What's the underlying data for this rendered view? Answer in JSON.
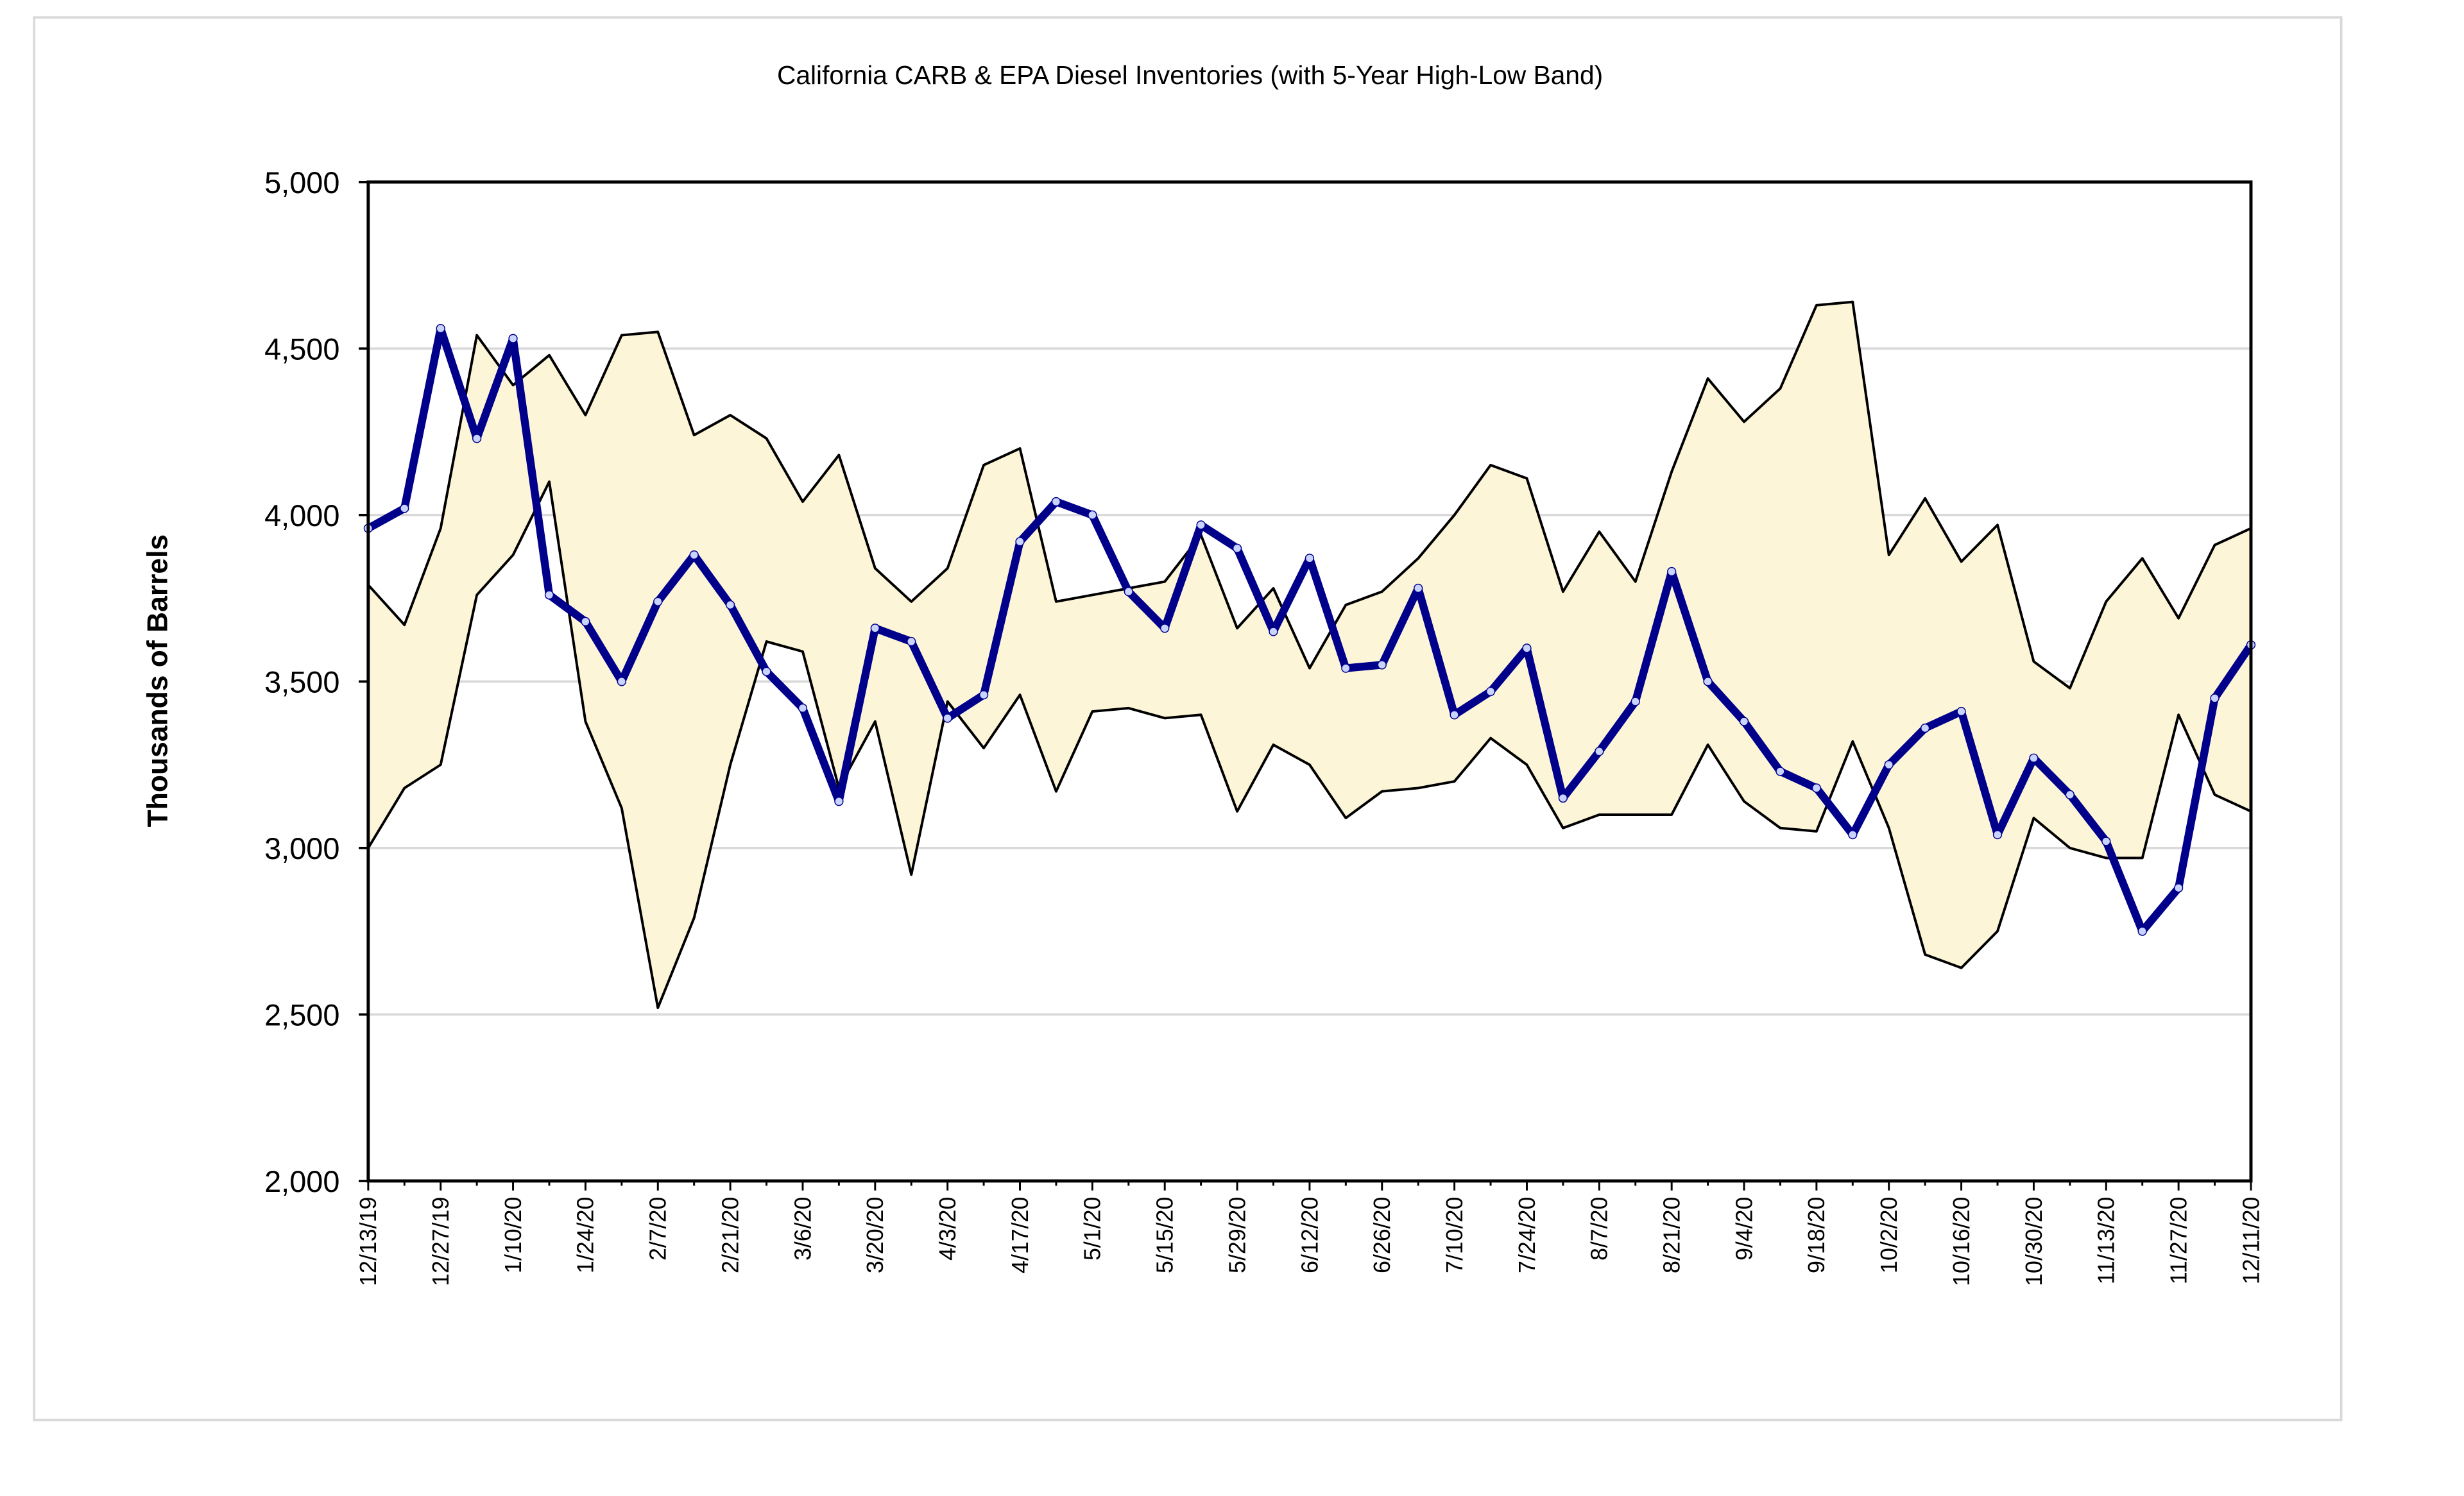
{
  "chart_data": {
    "type": "line",
    "title": "California CARB & EPA Diesel Inventories (with 5-Year High-Low Band)",
    "y_label": "Thousands of Barrels",
    "categories": [
      "12/13/19",
      null,
      "12/27/19",
      null,
      "1/10/20",
      null,
      "1/24/20",
      null,
      "2/7/20",
      null,
      "2/21/20",
      null,
      "3/6/20",
      null,
      "3/20/20",
      null,
      "4/3/20",
      null,
      "4/17/20",
      null,
      "5/1/20",
      null,
      "5/15/20",
      null,
      "5/29/20",
      null,
      "6/12/20",
      null,
      "6/26/20",
      null,
      "7/10/20",
      null,
      "7/24/20",
      null,
      "8/7/20",
      null,
      "8/21/20",
      null,
      "9/4/20",
      null,
      "9/18/20",
      null,
      "10/2/20",
      null,
      "10/16/20",
      null,
      "10/30/20",
      null,
      "11/13/20",
      null,
      "11/27/20",
      null,
      "12/11/20"
    ],
    "series": [
      {
        "color": "#000000",
        "values": [
          3790,
          3670,
          3960,
          4540,
          4390,
          4480,
          4300,
          4540,
          4550,
          4240,
          4300,
          4230,
          4040,
          4180,
          3840,
          3740,
          3840,
          4150,
          4200,
          3740,
          3760,
          3780,
          3800,
          3940,
          3660,
          3780,
          3540,
          3730,
          3770,
          3870,
          4000,
          4150,
          4110,
          3770,
          3950,
          3800,
          4130,
          4410,
          4280,
          4380,
          4630,
          4640,
          3880,
          4050,
          3860,
          3970,
          3560,
          3480,
          3740,
          3870,
          3690,
          3910,
          3960
        ]
      },
      {
        "color": "#000000",
        "values": [
          3000,
          3180,
          3250,
          3760,
          3880,
          4100,
          3380,
          3120,
          2520,
          2790,
          3250,
          3620,
          3590,
          3180,
          3380,
          2920,
          3440,
          3300,
          3460,
          3170,
          3410,
          3420,
          3390,
          3400,
          3110,
          3310,
          3250,
          3090,
          3170,
          3180,
          3200,
          3330,
          3250,
          3060,
          3100,
          3100,
          3100,
          3310,
          3140,
          3060,
          3050,
          3320,
          3060,
          2680,
          2640,
          2750,
          3090,
          3000,
          2970,
          2970,
          3400,
          3160,
          3110
        ]
      },
      {
        "color": "#00008b",
        "markers": true,
        "values": [
          3960,
          4020,
          4560,
          4230,
          4530,
          3760,
          3680,
          3500,
          3740,
          3880,
          3730,
          3530,
          3420,
          3140,
          3660,
          3620,
          3390,
          3460,
          3920,
          4040,
          4000,
          3770,
          3660,
          3970,
          3900,
          3650,
          3870,
          3540,
          3550,
          3780,
          3400,
          3470,
          3600,
          3150,
          3290,
          3440,
          3830,
          3500,
          3380,
          3230,
          3180,
          3040,
          3250,
          3360,
          3410,
          3040,
          3270,
          3160,
          3020,
          2750,
          2880,
          3450,
          3610
        ]
      }
    ],
    "band_between": [
      0,
      1
    ],
    "band_fill": "#fdf5d8",
    "ylim": [
      2000,
      5000
    ],
    "yticks": [
      {
        "value": 2000,
        "label": "2,000"
      },
      {
        "value": 2500,
        "label": "2,500"
      },
      {
        "value": 3000,
        "label": "3,000"
      },
      {
        "value": 3500,
        "label": "3,500"
      },
      {
        "value": 4000,
        "label": "4,000"
      },
      {
        "value": 4500,
        "label": "4,500"
      },
      {
        "value": 5000,
        "label": "5,000"
      }
    ],
    "grid": true
  }
}
